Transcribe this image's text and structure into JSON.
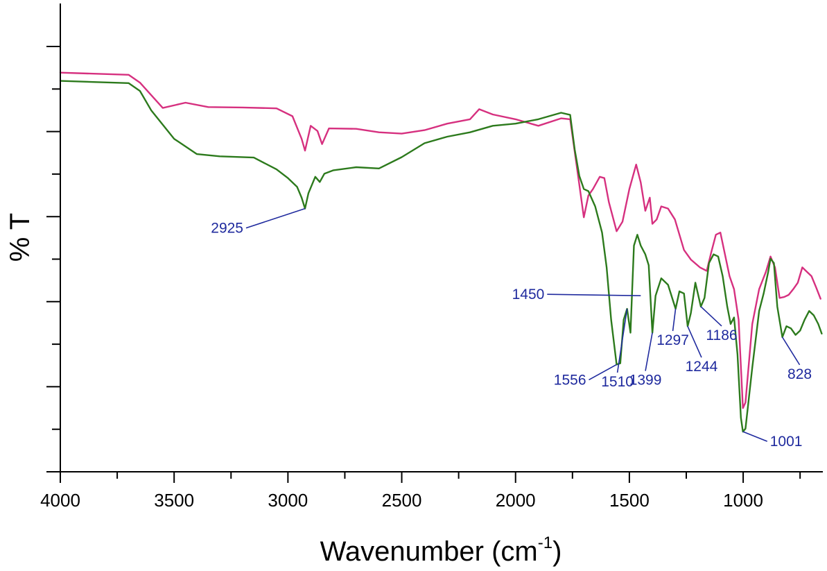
{
  "chart_data": {
    "type": "line",
    "title": "",
    "xlabel": "Wavenumber (cm",
    "xlabel_sup": "-1",
    "xlabel_close": ")",
    "ylabel": "% T",
    "xlim": [
      4000,
      650
    ],
    "ylim": [
      0,
      100
    ],
    "x_ticks": [
      4000,
      3500,
      3000,
      2500,
      2000,
      1500,
      1000
    ],
    "x_tick_labels": [
      "4000",
      "3500",
      "3000",
      "2500",
      "2000",
      "1500",
      "1000"
    ],
    "y_tick_count": 10,
    "grid": false,
    "colors": {
      "magenta": "#d6307f",
      "green": "#2c7a1c",
      "label": "#1f2a9e",
      "axis": "#000000"
    },
    "series": [
      {
        "name": "magenta",
        "color": "#d6307f",
        "points": [
          [
            4000,
            89.7
          ],
          [
            3700,
            89.2
          ],
          [
            3650,
            87.4
          ],
          [
            3550,
            81.6
          ],
          [
            3450,
            82.8
          ],
          [
            3350,
            81.8
          ],
          [
            3200,
            81.7
          ],
          [
            3050,
            81.5
          ],
          [
            2980,
            79.7
          ],
          [
            2940,
            74.5
          ],
          [
            2925,
            71.8
          ],
          [
            2900,
            77.5
          ],
          [
            2870,
            76.3
          ],
          [
            2850,
            73.3
          ],
          [
            2820,
            76.9
          ],
          [
            2700,
            76.8
          ],
          [
            2600,
            76.0
          ],
          [
            2500,
            75.7
          ],
          [
            2400,
            76.5
          ],
          [
            2300,
            78.0
          ],
          [
            2200,
            79.0
          ],
          [
            2160,
            81.3
          ],
          [
            2100,
            80.1
          ],
          [
            2000,
            79.0
          ],
          [
            1900,
            77.5
          ],
          [
            1800,
            79.2
          ],
          [
            1760,
            79.0
          ],
          [
            1720,
            64.0
          ],
          [
            1700,
            56.5
          ],
          [
            1680,
            61.5
          ],
          [
            1660,
            63.0
          ],
          [
            1630,
            65.8
          ],
          [
            1610,
            65.5
          ],
          [
            1590,
            60.0
          ],
          [
            1556,
            53.3
          ],
          [
            1530,
            55.5
          ],
          [
            1500,
            63.0
          ],
          [
            1470,
            68.6
          ],
          [
            1450,
            64.5
          ],
          [
            1430,
            58.0
          ],
          [
            1410,
            61.0
          ],
          [
            1399,
            55.0
          ],
          [
            1380,
            56.0
          ],
          [
            1360,
            59.0
          ],
          [
            1330,
            58.5
          ],
          [
            1300,
            56.0
          ],
          [
            1260,
            49.0
          ],
          [
            1230,
            46.8
          ],
          [
            1190,
            45.0
          ],
          [
            1160,
            44.2
          ],
          [
            1140,
            48.5
          ],
          [
            1120,
            52.5
          ],
          [
            1100,
            53.0
          ],
          [
            1080,
            48.0
          ],
          [
            1060,
            43.0
          ],
          [
            1040,
            40.0
          ],
          [
            1020,
            33.0
          ],
          [
            1001,
            12.7
          ],
          [
            990,
            14.0
          ],
          [
            960,
            32.0
          ],
          [
            930,
            40.0
          ],
          [
            900,
            44.0
          ],
          [
            880,
            47.5
          ],
          [
            860,
            45.0
          ],
          [
            840,
            38.0
          ],
          [
            820,
            38.2
          ],
          [
            800,
            38.7
          ],
          [
            780,
            40.0
          ],
          [
            760,
            41.5
          ],
          [
            740,
            45.0
          ],
          [
            720,
            44.0
          ],
          [
            700,
            43.0
          ],
          [
            680,
            40.5
          ],
          [
            660,
            37.8
          ]
        ]
      },
      {
        "name": "green",
        "color": "#2c7a1c",
        "points": [
          [
            4000,
            87.8
          ],
          [
            3700,
            87.3
          ],
          [
            3650,
            85.5
          ],
          [
            3600,
            81.0
          ],
          [
            3500,
            74.5
          ],
          [
            3400,
            71.0
          ],
          [
            3300,
            70.5
          ],
          [
            3150,
            70.2
          ],
          [
            3050,
            67.5
          ],
          [
            3000,
            65.5
          ],
          [
            2960,
            63.5
          ],
          [
            2940,
            61.0
          ],
          [
            2925,
            58.5
          ],
          [
            2910,
            62.0
          ],
          [
            2880,
            65.8
          ],
          [
            2860,
            64.6
          ],
          [
            2840,
            66.5
          ],
          [
            2800,
            67.3
          ],
          [
            2700,
            68.0
          ],
          [
            2600,
            67.7
          ],
          [
            2500,
            70.3
          ],
          [
            2400,
            73.5
          ],
          [
            2300,
            75.0
          ],
          [
            2200,
            76.0
          ],
          [
            2100,
            77.5
          ],
          [
            2000,
            78.0
          ],
          [
            1900,
            79.0
          ],
          [
            1800,
            80.5
          ],
          [
            1760,
            80.0
          ],
          [
            1740,
            72.0
          ],
          [
            1720,
            66.0
          ],
          [
            1700,
            63.0
          ],
          [
            1680,
            62.5
          ],
          [
            1650,
            59.0
          ],
          [
            1620,
            53.0
          ],
          [
            1600,
            45.0
          ],
          [
            1580,
            33.0
          ],
          [
            1556,
            22.7
          ],
          [
            1540,
            23.0
          ],
          [
            1525,
            33.0
          ],
          [
            1510,
            35.5
          ],
          [
            1495,
            30.0
          ],
          [
            1480,
            50.0
          ],
          [
            1465,
            52.5
          ],
          [
            1450,
            50.0
          ],
          [
            1430,
            48.0
          ],
          [
            1415,
            45.5
          ],
          [
            1399,
            30.0
          ],
          [
            1385,
            38.5
          ],
          [
            1360,
            42.5
          ],
          [
            1330,
            41.0
          ],
          [
            1297,
            35.5
          ],
          [
            1280,
            39.5
          ],
          [
            1260,
            39.0
          ],
          [
            1244,
            31.5
          ],
          [
            1230,
            34.5
          ],
          [
            1210,
            41.5
          ],
          [
            1186,
            36.0
          ],
          [
            1170,
            38.0
          ],
          [
            1150,
            46.0
          ],
          [
            1130,
            48.0
          ],
          [
            1110,
            47.5
          ],
          [
            1090,
            43.0
          ],
          [
            1070,
            36.0
          ],
          [
            1055,
            32.0
          ],
          [
            1040,
            33.5
          ],
          [
            1025,
            25.0
          ],
          [
            1010,
            10.5
          ],
          [
            1001,
            7.3
          ],
          [
            990,
            8.0
          ],
          [
            960,
            22.0
          ],
          [
            930,
            35.0
          ],
          [
            910,
            39.0
          ],
          [
            890,
            44.0
          ],
          [
            880,
            47.0
          ],
          [
            865,
            46.0
          ],
          [
            850,
            36.0
          ],
          [
            828,
            29.0
          ],
          [
            810,
            31.5
          ],
          [
            790,
            31.0
          ],
          [
            770,
            29.5
          ],
          [
            750,
            30.5
          ],
          [
            730,
            33.0
          ],
          [
            710,
            35.0
          ],
          [
            690,
            34.0
          ],
          [
            670,
            32.0
          ],
          [
            655,
            29.8
          ]
        ]
      }
    ],
    "peak_labels": [
      {
        "text": "2925",
        "x": 2925,
        "y": 58.5,
        "dx": -85,
        "dy": 28,
        "anchor": "end"
      },
      {
        "text": "1450",
        "x": 1450,
        "y": 38.5,
        "dx": -135,
        "dy": -2,
        "anchor": "end"
      },
      {
        "text": "1556",
        "x": 1556,
        "y": 22.7,
        "dx": -40,
        "dy": 22,
        "anchor": "end"
      },
      {
        "text": "1510",
        "x": 1510,
        "y": 35.5,
        "dx": -14,
        "dy": 92,
        "anchor": "middle"
      },
      {
        "text": "1399",
        "x": 1399,
        "y": 30.0,
        "dx": -10,
        "dy": 55,
        "anchor": "middle"
      },
      {
        "text": "1297",
        "x": 1297,
        "y": 35.5,
        "dx": -4,
        "dy": 32,
        "anchor": "middle"
      },
      {
        "text": "1244",
        "x": 1244,
        "y": 31.5,
        "dx": 20,
        "dy": 45,
        "anchor": "middle"
      },
      {
        "text": "1186",
        "x": 1186,
        "y": 36.0,
        "dx": 30,
        "dy": 28,
        "anchor": "middle"
      },
      {
        "text": "1001",
        "x": 1001,
        "y": 7.3,
        "dx": 35,
        "dy": 14,
        "anchor": "start"
      },
      {
        "text": "828",
        "x": 828,
        "y": 29.0,
        "dx": 25,
        "dy": 40,
        "anchor": "middle"
      }
    ]
  }
}
